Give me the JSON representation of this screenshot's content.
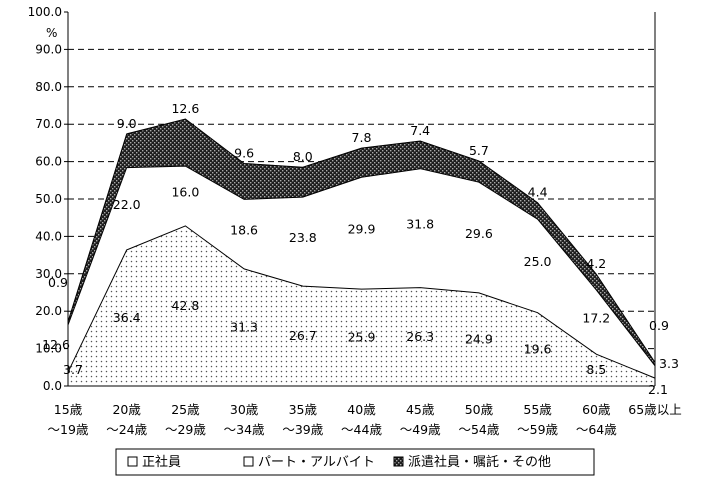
{
  "chart_data": {
    "type": "area",
    "stacked": true,
    "ylabel": "%",
    "ylim": [
      0,
      100
    ],
    "y_ticks": [
      "0.0",
      "10.0",
      "20.0",
      "30.0",
      "40.0",
      "50.0",
      "60.0",
      "70.0",
      "80.0",
      "90.0",
      "100.0"
    ],
    "grid": "horizontal dashed",
    "legend_position": "bottom",
    "categories": [
      [
        "15歳",
        "〜19歳"
      ],
      [
        "20歳",
        "〜24歳"
      ],
      [
        "25歳",
        "〜29歳"
      ],
      [
        "30歳",
        "〜34歳"
      ],
      [
        "35歳",
        "〜39歳"
      ],
      [
        "40歳",
        "〜44歳"
      ],
      [
        "45歳",
        "〜49歳"
      ],
      [
        "50歳",
        "〜54歳"
      ],
      [
        "55歳",
        "〜59歳"
      ],
      [
        "60歳",
        "〜64歳"
      ],
      [
        "65歳以上",
        ""
      ]
    ],
    "series": [
      {
        "name": "正社員",
        "pattern": "dots",
        "values": [
          3.7,
          36.4,
          42.8,
          31.3,
          26.7,
          25.9,
          26.3,
          24.9,
          19.6,
          8.5,
          2.1
        ],
        "labels": [
          "3.7",
          "36.4",
          "42.8",
          "31.3",
          "26.7",
          "25.9",
          "26.3",
          "24.9",
          "19.6",
          "8.5",
          "2.1"
        ]
      },
      {
        "name": "パート・アルバイト",
        "pattern": "white",
        "values": [
          12.6,
          22.0,
          16.0,
          18.6,
          23.8,
          29.9,
          31.8,
          29.6,
          25.0,
          17.2,
          3.3
        ],
        "labels": [
          "12.6",
          "22.0",
          "16.0",
          "18.6",
          "23.8",
          "29.9",
          "31.8",
          "29.6",
          "25.0",
          "17.2",
          "3.3"
        ]
      },
      {
        "name": "派遣社員・嘱託・その他",
        "pattern": "crosshatch",
        "values": [
          0.9,
          9.0,
          12.6,
          9.6,
          8.0,
          7.8,
          7.4,
          5.7,
          4.4,
          4.2,
          0.9
        ],
        "labels": [
          "0.9",
          "9.0",
          "12.6",
          "9.6",
          "8.0",
          "7.8",
          "7.4",
          "5.7",
          "4.4",
          "4.2",
          "0.9"
        ]
      }
    ]
  }
}
